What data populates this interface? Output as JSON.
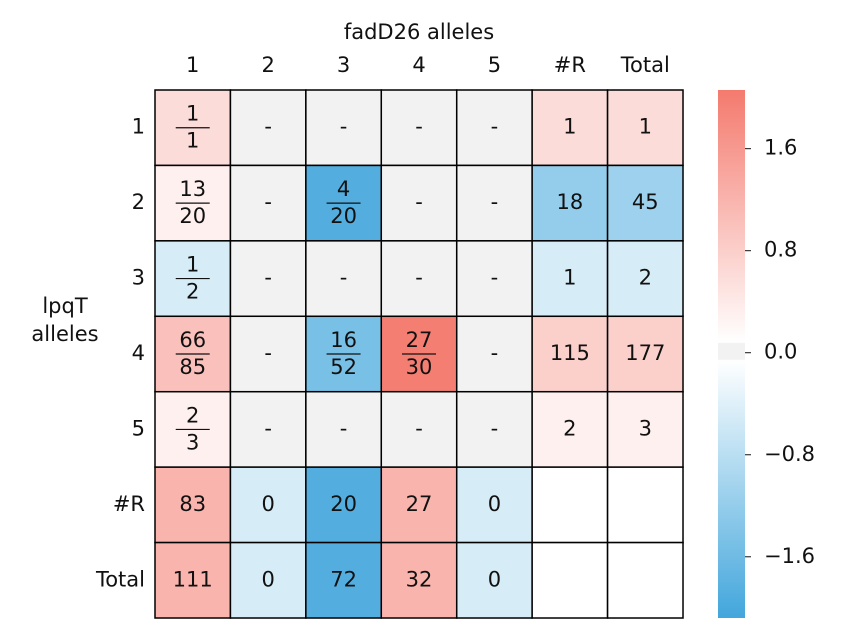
{
  "chart_data": {
    "type": "heatmap",
    "x_label": "fadD26 alleles",
    "y_label": "lpqT\nalleles",
    "x_categories": [
      "1",
      "2",
      "3",
      "4",
      "5",
      "#R",
      "Total"
    ],
    "y_categories": [
      "1",
      "2",
      "3",
      "4",
      "5",
      "#R",
      "Total"
    ],
    "values": [
      [
        0.6,
        0,
        0,
        0,
        0,
        0.6,
        0.6
      ],
      [
        0.3,
        0,
        -1.9,
        0,
        0,
        -1.2,
        -1.1
      ],
      [
        -0.5,
        0,
        0,
        0,
        0,
        -0.5,
        -0.5
      ],
      [
        1.0,
        0,
        -1.5,
        2.0,
        0,
        0.8,
        0.8
      ],
      [
        0.3,
        0,
        0,
        0,
        0,
        0.3,
        0.3
      ],
      [
        1.2,
        -0.5,
        -1.9,
        1.2,
        -0.5,
        null,
        null
      ],
      [
        1.2,
        -0.5,
        -1.9,
        1.2,
        -0.5,
        null,
        null
      ]
    ],
    "annotations": [
      [
        {
          "numerator": "1",
          "denominator": "1"
        },
        "-",
        "-",
        "-",
        "-",
        "1",
        "1"
      ],
      [
        {
          "numerator": "13",
          "denominator": "20"
        },
        "-",
        {
          "numerator": "4",
          "denominator": "20"
        },
        "-",
        "-",
        "18",
        "45"
      ],
      [
        {
          "numerator": "1",
          "denominator": "2"
        },
        "-",
        "-",
        "-",
        "-",
        "1",
        "2"
      ],
      [
        {
          "numerator": "66",
          "denominator": "85"
        },
        "-",
        {
          "numerator": "16",
          "denominator": "52"
        },
        {
          "numerator": "27",
          "denominator": "30"
        },
        "-",
        "115",
        "177"
      ],
      [
        {
          "numerator": "2",
          "denominator": "3"
        },
        "-",
        "-",
        "-",
        "-",
        "2",
        "3"
      ],
      [
        "83",
        "0",
        "20",
        "27",
        "0",
        null,
        null
      ],
      [
        "111",
        "0",
        "72",
        "32",
        "0",
        null,
        null
      ]
    ],
    "colorscale": [
      [
        0,
        "#42a6dc"
      ],
      [
        0.488,
        "#ffffff"
      ],
      [
        0.49,
        "#f2f2f2"
      ],
      [
        0.52,
        "#f2f2f2"
      ],
      [
        0.522,
        "#ffffff"
      ],
      [
        1,
        "#f47a6e"
      ]
    ],
    "clim": [
      -2.08,
      2.06
    ],
    "cticks": [
      {
        "value": 1.6,
        "label": "1.6"
      },
      {
        "value": 0.8,
        "label": "0.8"
      },
      {
        "value": 0.0,
        "label": "0.0"
      },
      {
        "value": -0.8,
        "label": "−0.8"
      },
      {
        "value": -1.6,
        "label": "−1.6"
      }
    ],
    "missing_color": "#ffffff"
  }
}
